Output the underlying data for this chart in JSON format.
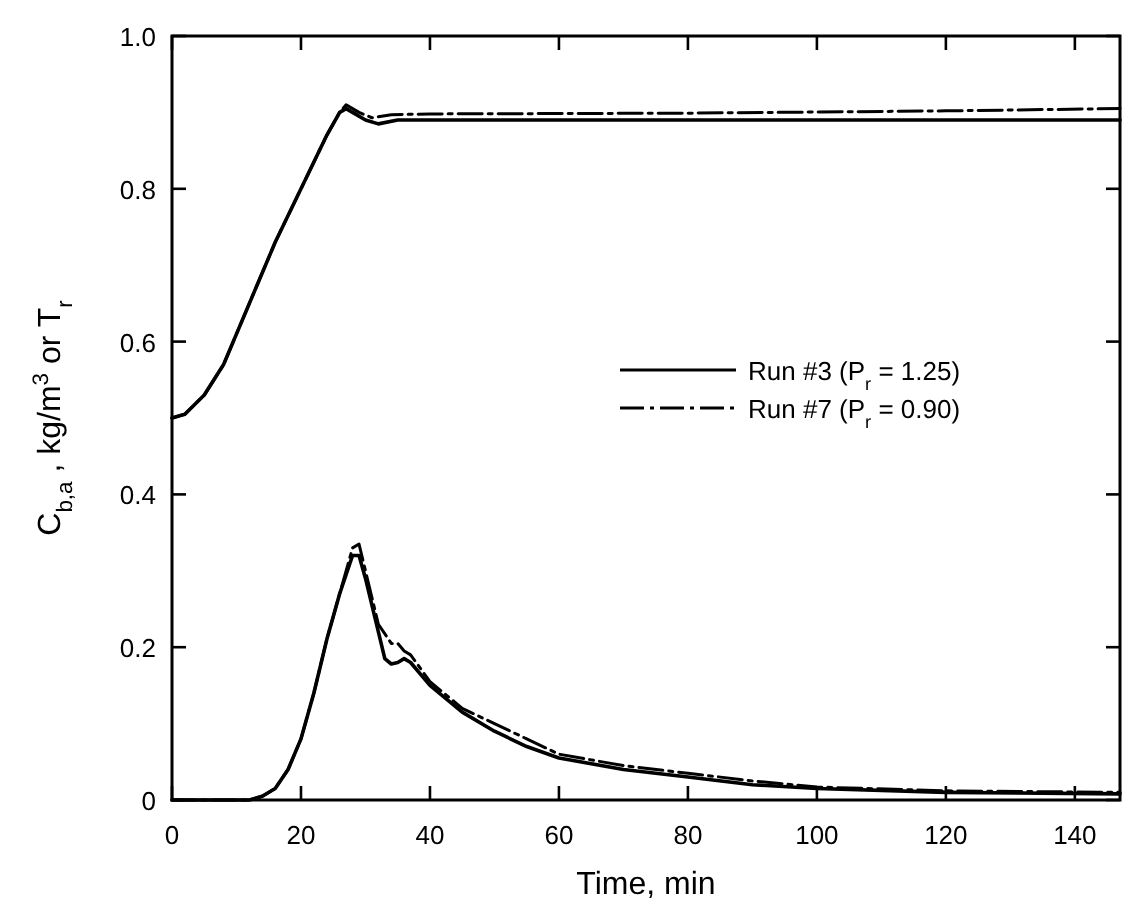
{
  "chart_data": {
    "type": "line",
    "xlabel": "Time, min",
    "ylabel": "C$_{b,a}$ , kg/m$^{3}$ or T$_{r}$",
    "xlim": [
      0,
      147
    ],
    "ylim": [
      0,
      1
    ],
    "xticks": [
      0,
      20,
      40,
      60,
      80,
      100,
      120,
      140
    ],
    "yticks": [
      0,
      0.2,
      0.4,
      0.6,
      0.8,
      {
        "value": 1,
        "label": "1.0"
      }
    ],
    "grid": false,
    "legend": "right",
    "series": [
      {
        "name": "Run #3 (P$_{r}$ = 1.25)",
        "color": "#000000",
        "line_style": "solid",
        "x": [
          0,
          2,
          5,
          8,
          12,
          16,
          20,
          24,
          26,
          27,
          28,
          30,
          32,
          35,
          40,
          80,
          147
        ],
        "values": [
          0.5,
          0.505,
          0.53,
          0.57,
          0.65,
          0.73,
          0.8,
          0.87,
          0.9,
          0.905,
          0.9,
          0.89,
          0.885,
          0.89,
          0.89,
          0.89,
          0.89
        ]
      },
      {
        "name": "Run #7 (P$_{r}$ = 0.90)",
        "color": "#000000",
        "line_style": "dashed",
        "x": [
          0,
          2,
          5,
          8,
          12,
          16,
          20,
          24,
          26,
          27,
          29,
          31,
          34,
          40,
          80,
          120,
          147
        ],
        "values": [
          0.5,
          0.505,
          0.53,
          0.57,
          0.65,
          0.73,
          0.8,
          0.87,
          0.9,
          0.91,
          0.9,
          0.893,
          0.897,
          0.898,
          0.899,
          0.902,
          0.905
        ]
      },
      {
        "color": "#000000",
        "line_style": "solid",
        "x": [
          0,
          12,
          14,
          16,
          18,
          20,
          22,
          24,
          26,
          28,
          29,
          30,
          32,
          33,
          34,
          35,
          36,
          37,
          40,
          45,
          50,
          55,
          60,
          70,
          80,
          90,
          100,
          120,
          147
        ],
        "values": [
          0,
          0,
          0.005,
          0.015,
          0.04,
          0.08,
          0.14,
          0.21,
          0.27,
          0.32,
          0.32,
          0.29,
          0.22,
          0.185,
          0.178,
          0.18,
          0.185,
          0.18,
          0.15,
          0.115,
          0.09,
          0.07,
          0.055,
          0.04,
          0.03,
          0.02,
          0.015,
          0.01,
          0.008
        ]
      },
      {
        "color": "#000000",
        "line_style": "dashed",
        "x": [
          0,
          12,
          14,
          16,
          18,
          20,
          22,
          24,
          26,
          28,
          29,
          30,
          32,
          34,
          35,
          36,
          37,
          40,
          45,
          50,
          55,
          60,
          70,
          80,
          90,
          100,
          120,
          147
        ],
        "values": [
          0,
          0,
          0.005,
          0.015,
          0.04,
          0.08,
          0.14,
          0.21,
          0.27,
          0.33,
          0.335,
          0.3,
          0.23,
          0.205,
          0.205,
          0.195,
          0.19,
          0.155,
          0.12,
          0.1,
          0.08,
          0.06,
          0.045,
          0.035,
          0.025,
          0.017,
          0.012,
          0.01
        ]
      }
    ]
  }
}
